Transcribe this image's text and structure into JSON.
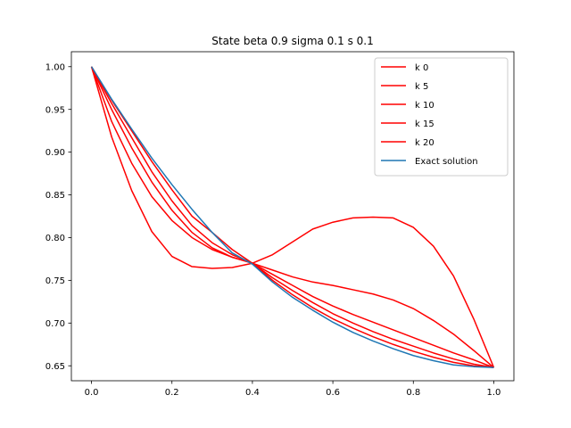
{
  "chart_data": {
    "type": "line",
    "title": "State beta 0.9 sigma 0.1 s 0.1",
    "xlabel": "",
    "ylabel": "",
    "xlim": [
      -0.05,
      1.05
    ],
    "ylim": [
      0.6325,
      1.0175
    ],
    "xticks": [
      "0.0",
      "0.2",
      "0.4",
      "0.6",
      "0.8",
      "1.0"
    ],
    "yticks": [
      "0.65",
      "0.70",
      "0.75",
      "0.80",
      "0.85",
      "0.90",
      "0.95",
      "1.00"
    ],
    "grid": false,
    "legend_position": "upper right",
    "x": [
      0.0,
      0.05,
      0.1,
      0.15,
      0.2,
      0.25,
      0.3,
      0.35,
      0.4,
      0.45,
      0.5,
      0.55,
      0.6,
      0.65,
      0.7,
      0.75,
      0.8,
      0.85,
      0.9,
      0.95,
      1.0
    ],
    "series": [
      {
        "name": "k 0",
        "color": "#ff0000",
        "values": [
          1.0,
          0.918,
          0.855,
          0.807,
          0.778,
          0.766,
          0.764,
          0.765,
          0.77,
          0.78,
          0.795,
          0.81,
          0.818,
          0.823,
          0.824,
          0.823,
          0.812,
          0.79,
          0.755,
          0.705,
          0.648
        ]
      },
      {
        "name": "k 5",
        "color": "#ff0000",
        "values": [
          1.0,
          0.936,
          0.887,
          0.848,
          0.82,
          0.8,
          0.786,
          0.777,
          0.77,
          0.762,
          0.754,
          0.748,
          0.744,
          0.739,
          0.734,
          0.727,
          0.717,
          0.703,
          0.687,
          0.668,
          0.648
        ]
      },
      {
        "name": "k 10",
        "color": "#ff0000",
        "values": [
          1.0,
          0.95,
          0.905,
          0.865,
          0.832,
          0.806,
          0.788,
          0.777,
          0.77,
          0.757,
          0.744,
          0.731,
          0.72,
          0.71,
          0.701,
          0.692,
          0.683,
          0.674,
          0.665,
          0.657,
          0.648
        ]
      },
      {
        "name": "k 15",
        "color": "#ff0000",
        "values": [
          1.0,
          0.957,
          0.917,
          0.877,
          0.843,
          0.814,
          0.794,
          0.78,
          0.77,
          0.753,
          0.738,
          0.724,
          0.711,
          0.7,
          0.69,
          0.681,
          0.673,
          0.665,
          0.658,
          0.652,
          0.648
        ]
      },
      {
        "name": "k 20",
        "color": "#ff0000",
        "values": [
          1.0,
          0.961,
          0.925,
          0.889,
          0.856,
          0.825,
          0.806,
          0.786,
          0.77,
          0.75,
          0.733,
          0.718,
          0.705,
          0.694,
          0.684,
          0.675,
          0.667,
          0.66,
          0.654,
          0.65,
          0.648
        ]
      },
      {
        "name": "Exact solution",
        "color": "#1f77b4",
        "values": [
          1.0,
          0.962,
          0.927,
          0.893,
          0.862,
          0.833,
          0.806,
          0.782,
          0.769,
          0.748,
          0.73,
          0.715,
          0.701,
          0.689,
          0.679,
          0.67,
          0.662,
          0.656,
          0.651,
          0.649,
          0.648
        ]
      }
    ]
  }
}
